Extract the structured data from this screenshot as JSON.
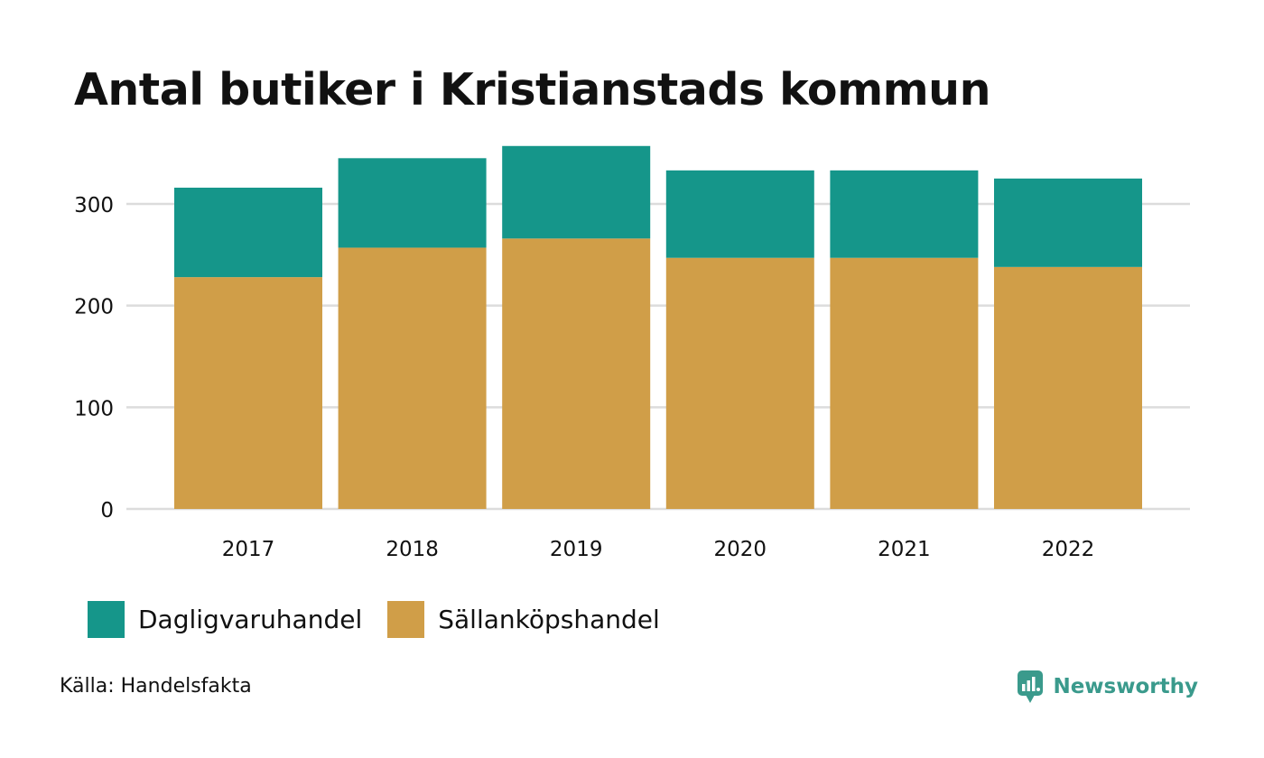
{
  "title": "Antal butiker i Kristianstads kommun",
  "colors": {
    "dagligvaruhandel": "#15968a",
    "sallankopshandel": "#d09e48",
    "grid": "#dcdcdc",
    "brand": "#3a9a8c"
  },
  "chart_data": {
    "type": "bar",
    "stacked": true,
    "title": "Antal butiker i Kristianstads kommun",
    "xlabel": "",
    "ylabel": "",
    "categories": [
      "2017",
      "2018",
      "2019",
      "2020",
      "2021",
      "2022"
    ],
    "series": [
      {
        "name": "Sällanköpshandel",
        "values": [
          228,
          257,
          266,
          247,
          247,
          238
        ]
      },
      {
        "name": "Dagligvaruhandel",
        "values": [
          88,
          88,
          91,
          86,
          86,
          87
        ]
      }
    ],
    "yticks": [
      0,
      100,
      200,
      300
    ],
    "ylim": [
      0,
      360
    ],
    "grid": true,
    "legend": "bottom-left"
  },
  "legend": {
    "items": [
      {
        "label": "Dagligvaruhandel",
        "color": "#15968a"
      },
      {
        "label": "Sällanköpshandel",
        "color": "#d09e48"
      }
    ]
  },
  "source": "Källa: Handelsfakta",
  "brand": {
    "name": "Newsworthy",
    "icon": "newsworthy-logo-icon"
  }
}
